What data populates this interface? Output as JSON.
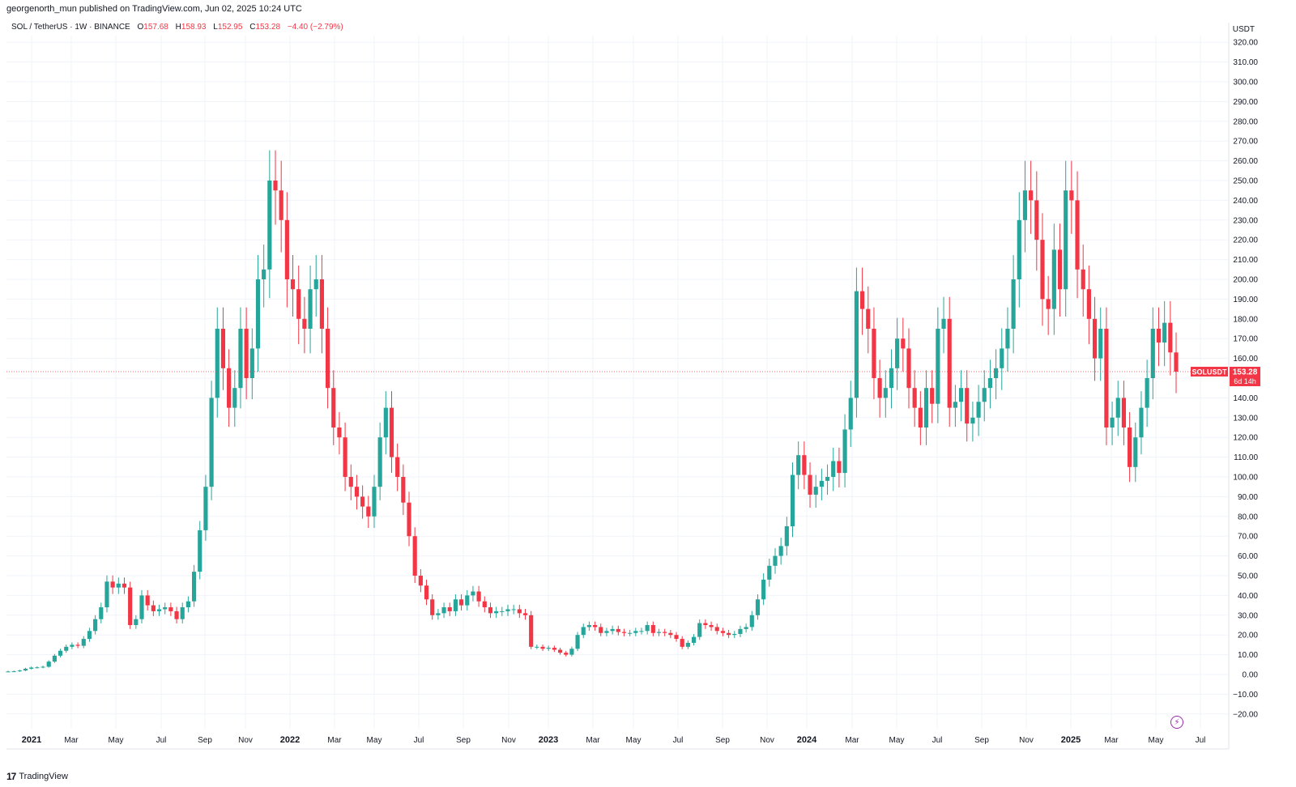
{
  "publisher": "georgenorth_mun published on TradingView.com, Jun 02, 2025 10:24 UTC",
  "legend": {
    "symbol": "SOL / TetherUS · 1W · BINANCE",
    "open_label": "O",
    "open": "157.68",
    "high_label": "H",
    "high": "158.93",
    "low_label": "L",
    "low": "152.95",
    "close_label": "C",
    "close": "153.28",
    "change": "−4.40 (−2.79%)"
  },
  "branding": "TradingView",
  "colors": {
    "up": "#26a69a",
    "down": "#f23645",
    "grid": "#f0f3fa",
    "text": "#131722",
    "flash": "#9c27b0"
  },
  "icons": [
    "tradingview-logo-icon",
    "lightning-icon"
  ],
  "chart_data": {
    "type": "candlestick",
    "title": "SOL / TetherUS · 1W · BINANCE",
    "y_axis_unit": "USDT",
    "ylim": [
      -25,
      325
    ],
    "y_ticks": [
      -20,
      -10,
      0,
      10,
      20,
      30,
      40,
      50,
      60,
      70,
      80,
      90,
      100,
      110,
      120,
      130,
      140,
      150,
      160,
      170,
      180,
      190,
      200,
      210,
      220,
      230,
      240,
      250,
      260,
      270,
      280,
      290,
      300,
      310,
      320
    ],
    "x_ticks": [
      "2021",
      "Mar",
      "May",
      "Jul",
      "Sep",
      "Nov",
      "2022",
      "Mar",
      "May",
      "Jul",
      "Sep",
      "Nov",
      "2023",
      "Mar",
      "May",
      "Jul",
      "Sep",
      "Nov",
      "2024",
      "Mar",
      "May",
      "Jul",
      "Sep",
      "Nov",
      "2025",
      "Mar",
      "May",
      "Jul"
    ],
    "bold_x_ticks": [
      "2021",
      "2022",
      "2023",
      "2024",
      "2025"
    ],
    "last_price": {
      "label": "SOLUSDT",
      "value": "153.28",
      "countdown": "6d 14h"
    },
    "grid": true,
    "candles_note": "weekly OHLC approximated from chart; close of each candle shown",
    "closes": [
      1.5,
      1.6,
      2.0,
      2.9,
      3.5,
      3.6,
      3.9,
      6.5,
      9.5,
      12.0,
      14.0,
      15.0,
      14.5,
      18.0,
      22.0,
      28.0,
      34.0,
      47.0,
      44.0,
      46.0,
      44.0,
      25.0,
      28.0,
      40.0,
      35.0,
      32.0,
      33.0,
      34.0,
      32.0,
      28.0,
      34.0,
      37.0,
      52.0,
      73.0,
      95.0,
      140.0,
      175.0,
      155.0,
      135.0,
      145.0,
      175.0,
      150.0,
      165.0,
      200.0,
      205.0,
      250.0,
      245.0,
      230.0,
      200.0,
      195.0,
      180.0,
      175.0,
      195.0,
      200.0,
      175.0,
      145.0,
      125.0,
      120.0,
      100.0,
      95.0,
      90.0,
      85.0,
      80.0,
      95.0,
      120.0,
      135.0,
      110.0,
      100.0,
      87.0,
      70.0,
      50.0,
      45.0,
      38.0,
      30.0,
      31.0,
      34.0,
      32.0,
      38.0,
      35.0,
      40.0,
      42.0,
      37.0,
      34.0,
      31.0,
      32.0,
      32.0,
      33.0,
      33.0,
      31.0,
      30.0,
      14.0,
      14.0,
      13.0,
      13.5,
      12.5,
      11.0,
      10.0,
      13.0,
      20.0,
      24.0,
      25.0,
      24.0,
      21.0,
      22.0,
      23.0,
      21.5,
      21.0,
      21.0,
      22.0,
      22.0,
      25.0,
      21.0,
      21.5,
      21.0,
      20.0,
      18.0,
      14.0,
      16.0,
      19.0,
      26.0,
      25.0,
      24.0,
      22.0,
      21.0,
      20.0,
      20.5,
      23.0,
      24.0,
      30.0,
      38.0,
      48.0,
      55.0,
      60.0,
      65.0,
      75.0,
      101.0,
      111.0,
      101.0,
      91.0,
      95.0,
      98.0,
      100.0,
      108.0,
      102.0,
      124.0,
      140.0,
      194.0,
      185.0,
      175.0,
      150.0,
      140.0,
      145.0,
      155.0,
      170.0,
      165.0,
      145.0,
      135.0,
      125.0,
      145.0,
      137.0,
      175.0,
      180.0,
      135.0,
      138.0,
      145.0,
      127.0,
      130.0,
      138.0,
      145.0,
      150.0,
      155.0,
      165.0,
      175.0,
      200.0,
      230.0,
      245.0,
      240.0,
      220.0,
      190.0,
      185.0,
      215.0,
      195.0,
      245.0,
      240.0,
      205.0,
      195.0,
      180.0,
      160.0,
      175.0,
      125.0,
      130.0,
      140.0,
      125.0,
      105.0,
      120.0,
      135.0,
      150.0,
      175.0,
      168.0,
      178.0,
      163.0,
      153.28
    ]
  }
}
